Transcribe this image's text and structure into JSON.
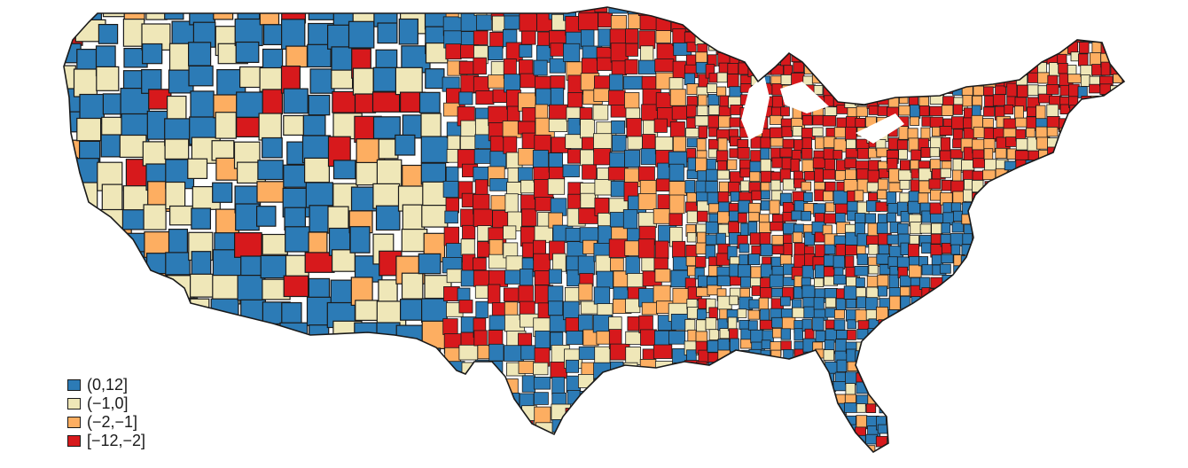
{
  "legend": {
    "items": [
      {
        "label": "(0,12]",
        "color": "#2c7bb6"
      },
      {
        "label": "(−1,0]",
        "color": "#efe7b8"
      },
      {
        "label": "(−2,−1]",
        "color": "#fdae61"
      },
      {
        "label": "[−12,−2]",
        "color": "#d7191c"
      }
    ]
  },
  "map": {
    "region": "contiguous-united-states",
    "unit": "county",
    "border_color": "#1a1a1a",
    "water_color": "#ffffff"
  }
}
